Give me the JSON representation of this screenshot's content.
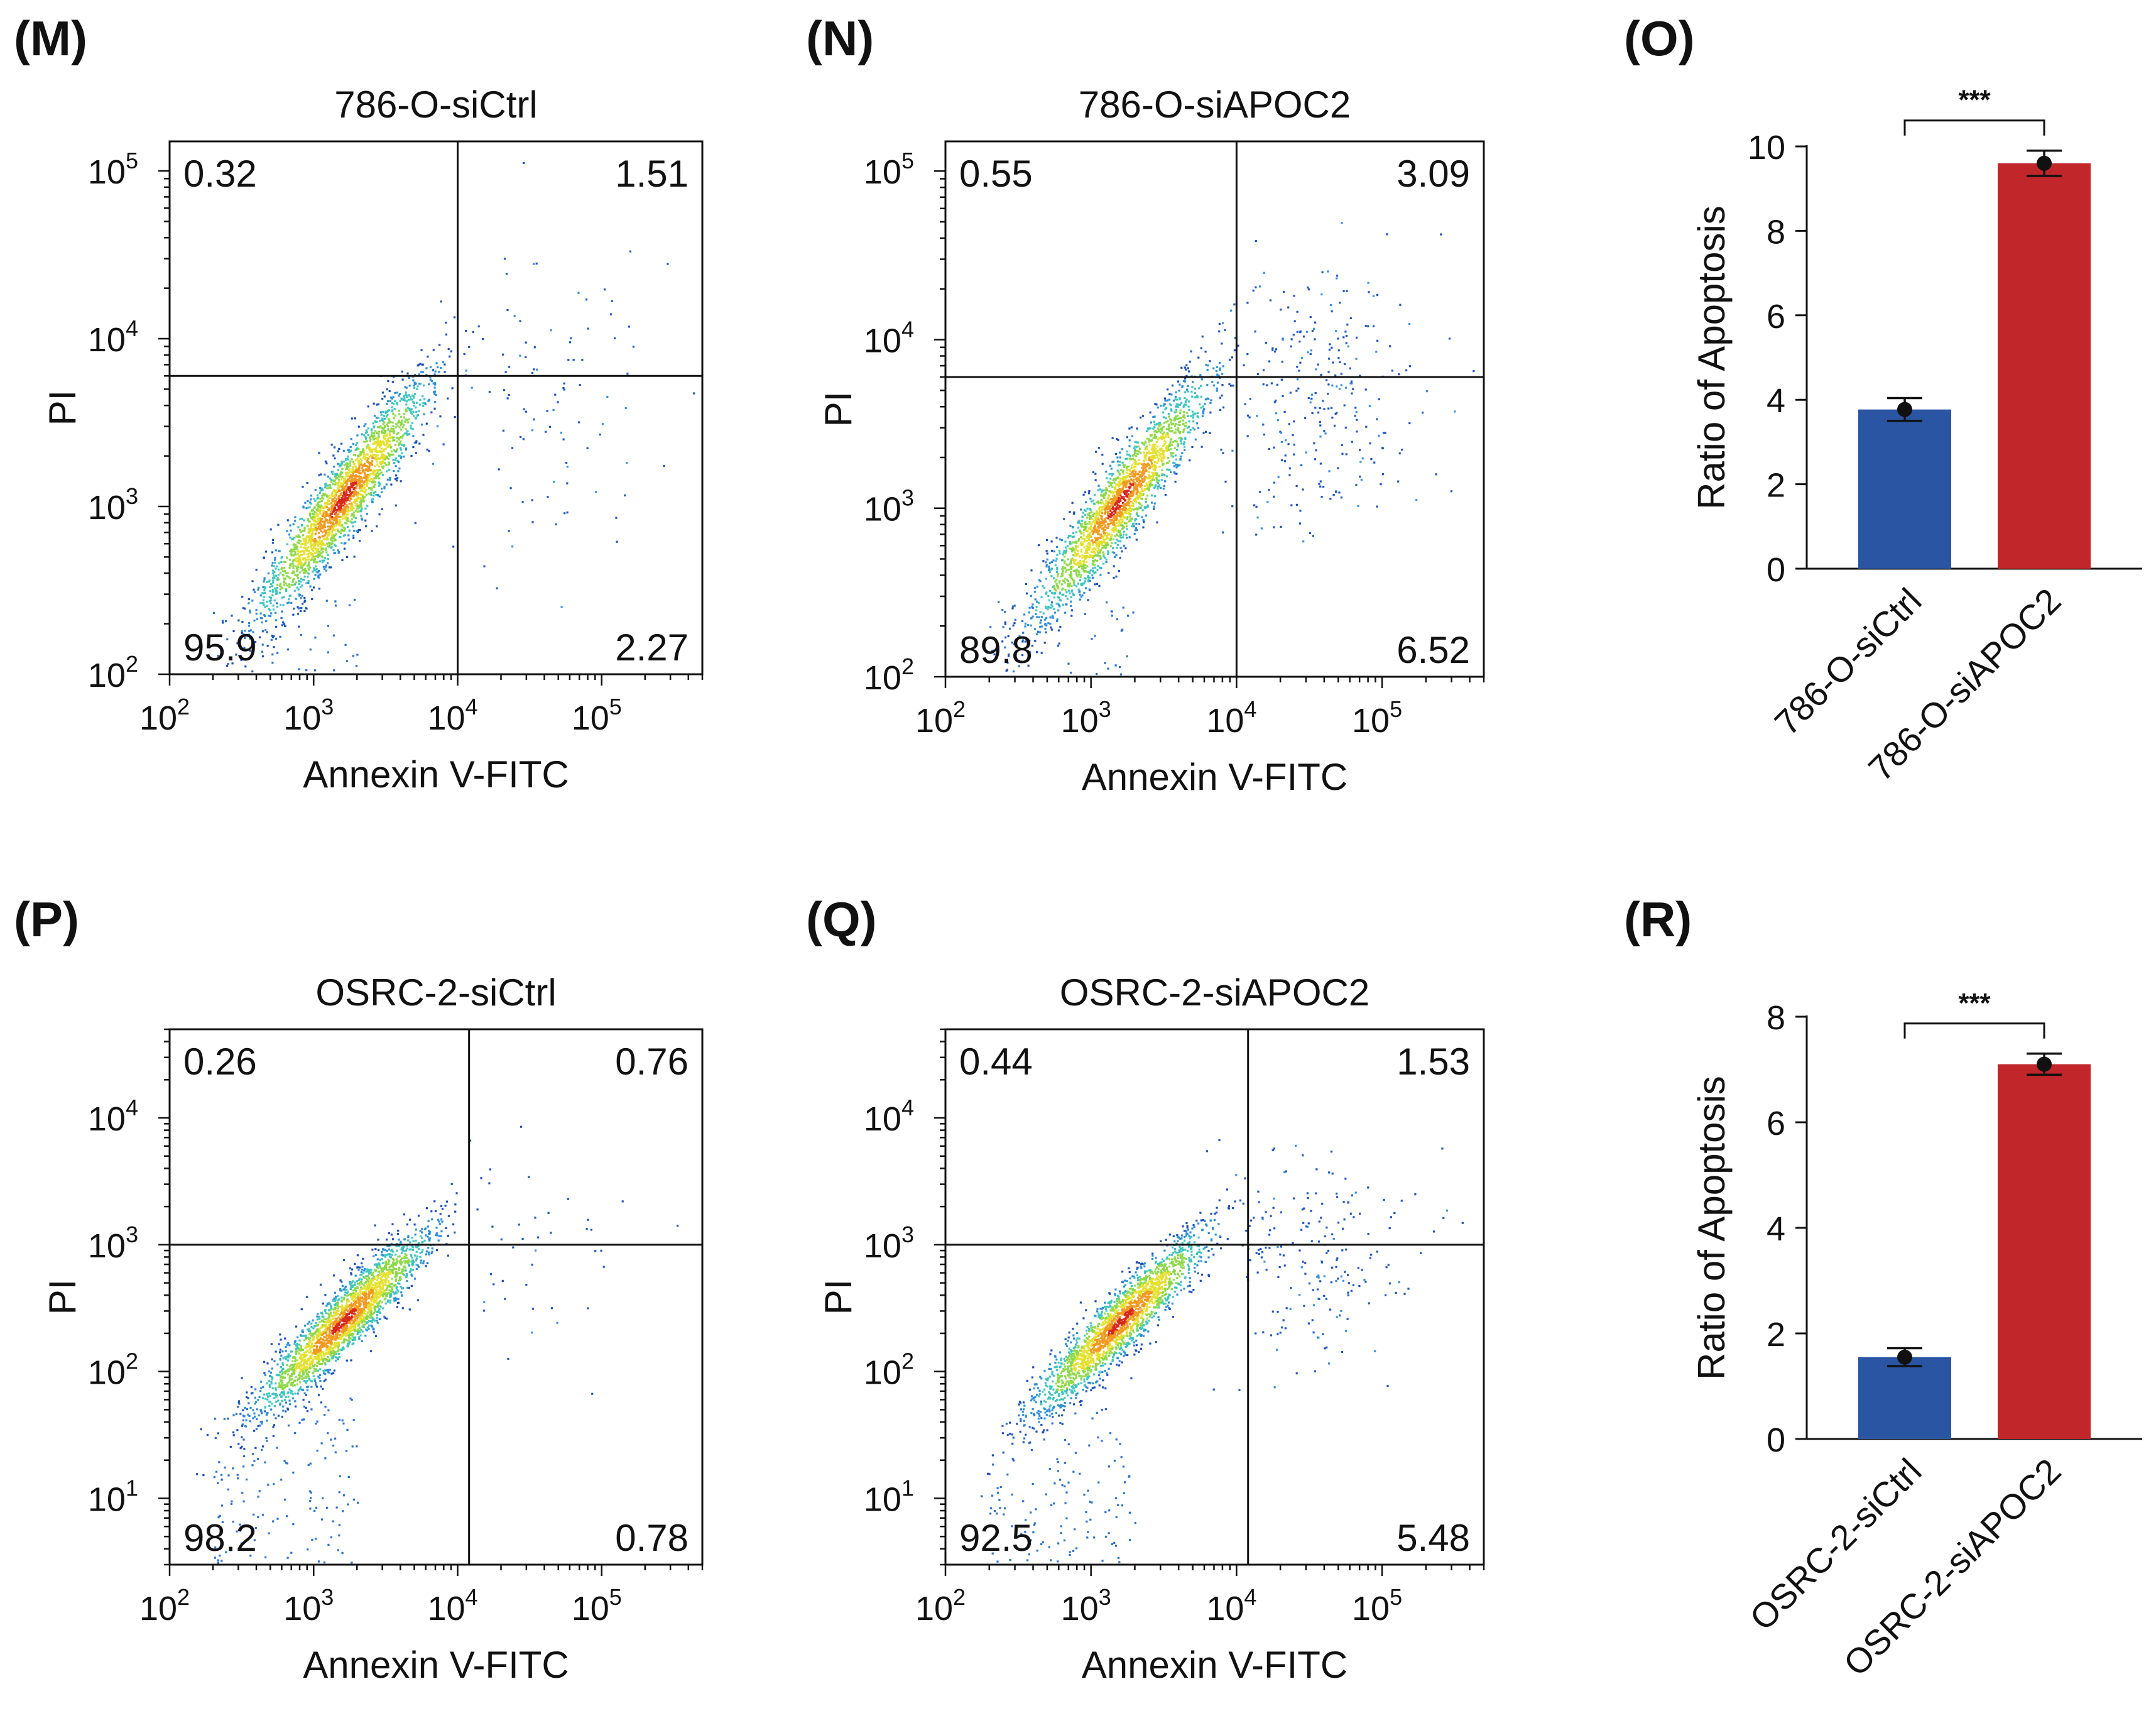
{
  "figure": {
    "colors": {
      "ctrl": "#2a55a3",
      "si": "#c0262a",
      "axis": "#111111"
    },
    "flow_panels": [
      {
        "letter": "(M)",
        "title": "786-O-siCtrl",
        "xlabel": "Annexin V-FITC",
        "ylabel": "PI",
        "yticks": [
          {
            "exp": 2,
            "label": "10",
            "sup": "2"
          },
          {
            "exp": 3,
            "label": "10",
            "sup": "3"
          },
          {
            "exp": 4,
            "label": "10",
            "sup": "4"
          },
          {
            "exp": 5,
            "label": "10",
            "sup": "5"
          }
        ],
        "xticks": [
          {
            "exp": 2,
            "label": "10",
            "sup": "2"
          },
          {
            "exp": 3,
            "label": "10",
            "sup": "3"
          },
          {
            "exp": 4,
            "label": "10",
            "sup": "4"
          },
          {
            "exp": 5,
            "label": "10",
            "sup": "5"
          }
        ],
        "quadrants": {
          "ul": "0.32",
          "ur": "1.51",
          "ll": "95.9",
          "lr": "2.27"
        }
      },
      {
        "letter": "(N)",
        "title": "786-O-siAPOC2",
        "xlabel": "Annexin V-FITC",
        "ylabel": "PI",
        "yticks": [
          {
            "exp": 2,
            "label": "10",
            "sup": "2"
          },
          {
            "exp": 3,
            "label": "10",
            "sup": "3"
          },
          {
            "exp": 4,
            "label": "10",
            "sup": "4"
          },
          {
            "exp": 5,
            "label": "10",
            "sup": "5"
          }
        ],
        "xticks": [
          {
            "exp": 2,
            "label": "10",
            "sup": "2"
          },
          {
            "exp": 3,
            "label": "10",
            "sup": "3"
          },
          {
            "exp": 4,
            "label": "10",
            "sup": "4"
          },
          {
            "exp": 5,
            "label": "10",
            "sup": "5"
          }
        ],
        "quadrants": {
          "ul": "0.55",
          "ur": "3.09",
          "ll": "89.8",
          "lr": "6.52"
        }
      },
      {
        "letter": "(P)",
        "title": "OSRC-2-siCtrl",
        "xlabel": "Annexin V-FITC",
        "ylabel": "PI",
        "yticks": [
          {
            "exp": 1,
            "label": "10",
            "sup": "1"
          },
          {
            "exp": 2,
            "label": "10",
            "sup": "2"
          },
          {
            "exp": 3,
            "label": "10",
            "sup": "3"
          },
          {
            "exp": 4,
            "label": "10",
            "sup": "4"
          }
        ],
        "xticks": [
          {
            "exp": 2,
            "label": "10",
            "sup": "2"
          },
          {
            "exp": 3,
            "label": "10",
            "sup": "3"
          },
          {
            "exp": 4,
            "label": "10",
            "sup": "4"
          },
          {
            "exp": 5,
            "label": "10",
            "sup": "5"
          }
        ],
        "quadrants": {
          "ul": "0.26",
          "ur": "0.76",
          "ll": "98.2",
          "lr": "0.78"
        }
      },
      {
        "letter": "(Q)",
        "title": "OSRC-2-siAPOC2",
        "xlabel": "Annexin V-FITC",
        "ylabel": "PI",
        "yticks": [
          {
            "exp": 1,
            "label": "10",
            "sup": "1"
          },
          {
            "exp": 2,
            "label": "10",
            "sup": "2"
          },
          {
            "exp": 3,
            "label": "10",
            "sup": "3"
          },
          {
            "exp": 4,
            "label": "10",
            "sup": "4"
          }
        ],
        "xticks": [
          {
            "exp": 2,
            "label": "10",
            "sup": "2"
          },
          {
            "exp": 3,
            "label": "10",
            "sup": "3"
          },
          {
            "exp": 4,
            "label": "10",
            "sup": "4"
          },
          {
            "exp": 5,
            "label": "10",
            "sup": "5"
          }
        ],
        "quadrants": {
          "ul": "0.44",
          "ur": "1.53",
          "ll": "92.5",
          "lr": "5.48"
        }
      }
    ],
    "bar_panels": [
      {
        "letter": "(O)",
        "ylabel": "Ratio of Apoptosis",
        "sig": "***"
      },
      {
        "letter": "(R)",
        "ylabel": "Ratio of Apoptosis",
        "sig": "***"
      }
    ]
  },
  "chart_data": [
    {
      "type": "scatter",
      "panel": "M",
      "title": "786-O-siCtrl",
      "xlabel": "Annexin V-FITC",
      "ylabel": "PI",
      "xscale": "log",
      "yscale": "log",
      "xlim": [
        100,
        500000
      ],
      "ylim": [
        100,
        150000
      ],
      "quadrant_gates": {
        "x": 10000,
        "y": 6000
      },
      "quadrant_percent": {
        "upper_left": 0.32,
        "upper_right": 1.51,
        "lower_left": 95.9,
        "lower_right": 2.27
      }
    },
    {
      "type": "scatter",
      "panel": "N",
      "title": "786-O-siAPOC2",
      "xlabel": "Annexin V-FITC",
      "ylabel": "PI",
      "xscale": "log",
      "yscale": "log",
      "xlim": [
        100,
        500000
      ],
      "ylim": [
        100,
        150000
      ],
      "quadrant_gates": {
        "x": 10000,
        "y": 6000
      },
      "quadrant_percent": {
        "upper_left": 0.55,
        "upper_right": 3.09,
        "lower_left": 89.8,
        "lower_right": 6.52
      }
    },
    {
      "type": "bar",
      "panel": "O",
      "categories": [
        "786-O-siCtrl",
        "786-O-siAPOC2"
      ],
      "values": [
        3.77,
        9.6
      ],
      "errors": [
        0.27,
        0.3
      ],
      "ylabel": "Ratio of Apoptosis",
      "ylim": [
        0,
        10
      ],
      "yticks": [
        0,
        2,
        4,
        6,
        8,
        10
      ],
      "significance": "***"
    },
    {
      "type": "scatter",
      "panel": "P",
      "title": "OSRC-2-siCtrl",
      "xlabel": "Annexin V-FITC",
      "ylabel": "PI",
      "xscale": "log",
      "yscale": "log",
      "xlim": [
        100,
        500000
      ],
      "ylim": [
        3,
        50000
      ],
      "quadrant_gates": {
        "x": 12000,
        "y": 1000
      },
      "quadrant_percent": {
        "upper_left": 0.26,
        "upper_right": 0.76,
        "lower_left": 98.2,
        "lower_right": 0.78
      }
    },
    {
      "type": "scatter",
      "panel": "Q",
      "title": "OSRC-2-siAPOC2",
      "xlabel": "Annexin V-FITC",
      "ylabel": "PI",
      "xscale": "log",
      "yscale": "log",
      "xlim": [
        100,
        500000
      ],
      "ylim": [
        3,
        50000
      ],
      "quadrant_gates": {
        "x": 12000,
        "y": 1000
      },
      "quadrant_percent": {
        "upper_left": 0.44,
        "upper_right": 1.53,
        "lower_left": 92.5,
        "lower_right": 5.48
      }
    },
    {
      "type": "bar",
      "panel": "R",
      "categories": [
        "OSRC-2-siCtrl",
        "OSRC-2-siAPOC2"
      ],
      "values": [
        1.55,
        7.1
      ],
      "errors": [
        0.17,
        0.2
      ],
      "ylabel": "Ratio of Apoptosis",
      "ylim": [
        0,
        8
      ],
      "yticks": [
        0,
        2,
        4,
        6,
        8
      ],
      "significance": "***"
    }
  ]
}
